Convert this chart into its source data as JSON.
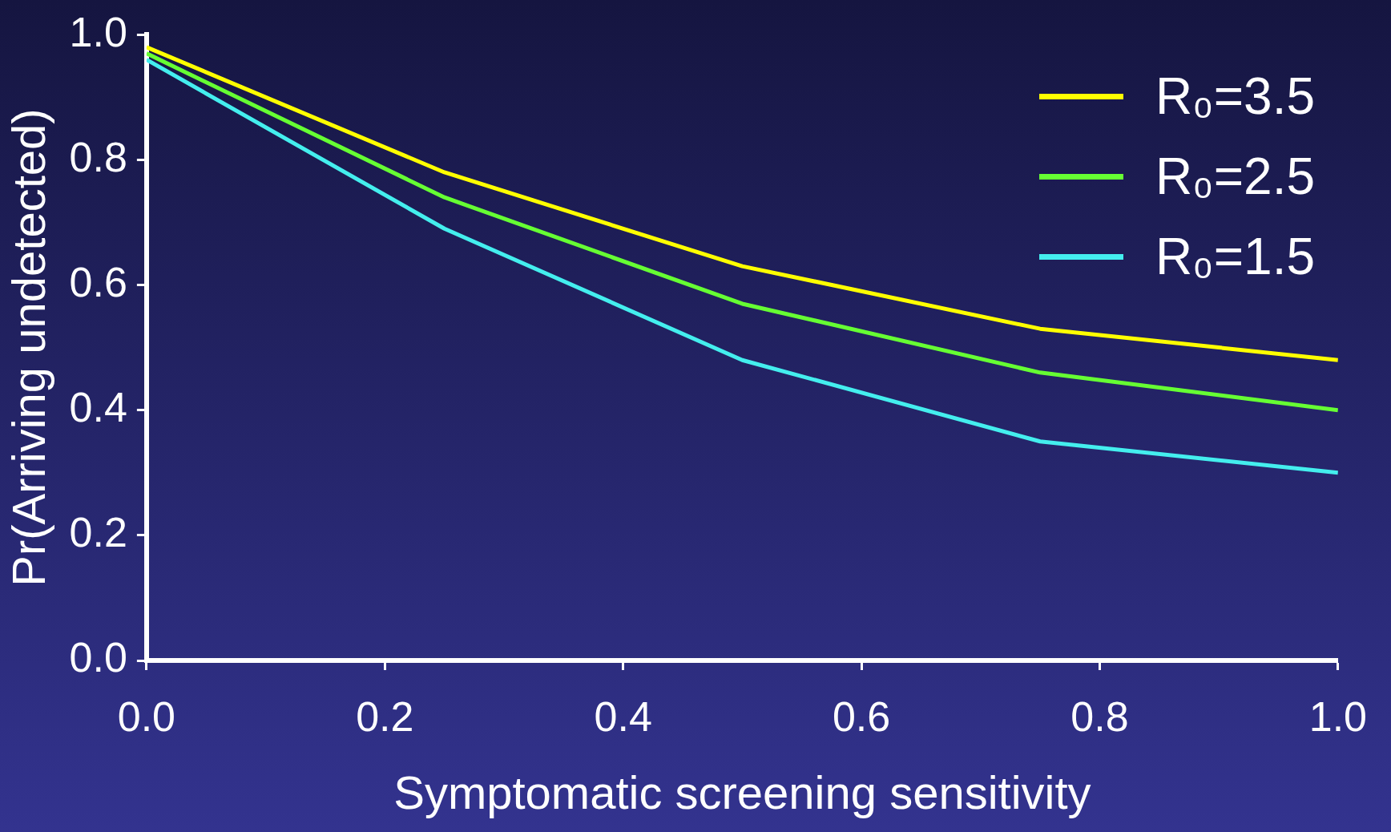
{
  "chart_data": {
    "type": "line",
    "xlabel": "Symptomatic screening sensitivity",
    "ylabel": "Pr(Arriving undetected)",
    "x": [
      0,
      0.25,
      0.5,
      0.75,
      1.0
    ],
    "series": [
      {
        "name": "R₀=3.5",
        "color": "#ffff00",
        "values": [
          0.98,
          0.78,
          0.63,
          0.53,
          0.48
        ]
      },
      {
        "name": "R₀=2.5",
        "color": "#66ff33",
        "values": [
          0.97,
          0.74,
          0.57,
          0.46,
          0.4
        ]
      },
      {
        "name": "R₀=1.5",
        "color": "#44eeee",
        "values": [
          0.96,
          0.69,
          0.48,
          0.35,
          0.3
        ]
      }
    ],
    "xlim": [
      0,
      1.0
    ],
    "xticks": [
      {
        "value": 0,
        "label": "0.0"
      },
      0.2,
      0.4,
      0.6,
      0.8,
      {
        "value": 1.0,
        "label": "1.0"
      }
    ],
    "ylim": [
      0,
      1.0
    ],
    "yticks": [
      {
        "value": 0,
        "label": "0.0"
      },
      0.2,
      0.4,
      0.6,
      0.8,
      {
        "value": 1.0,
        "label": "1.0"
      }
    ],
    "grid": false,
    "legend": "top right",
    "marker": "none",
    "line_style": "solid"
  }
}
